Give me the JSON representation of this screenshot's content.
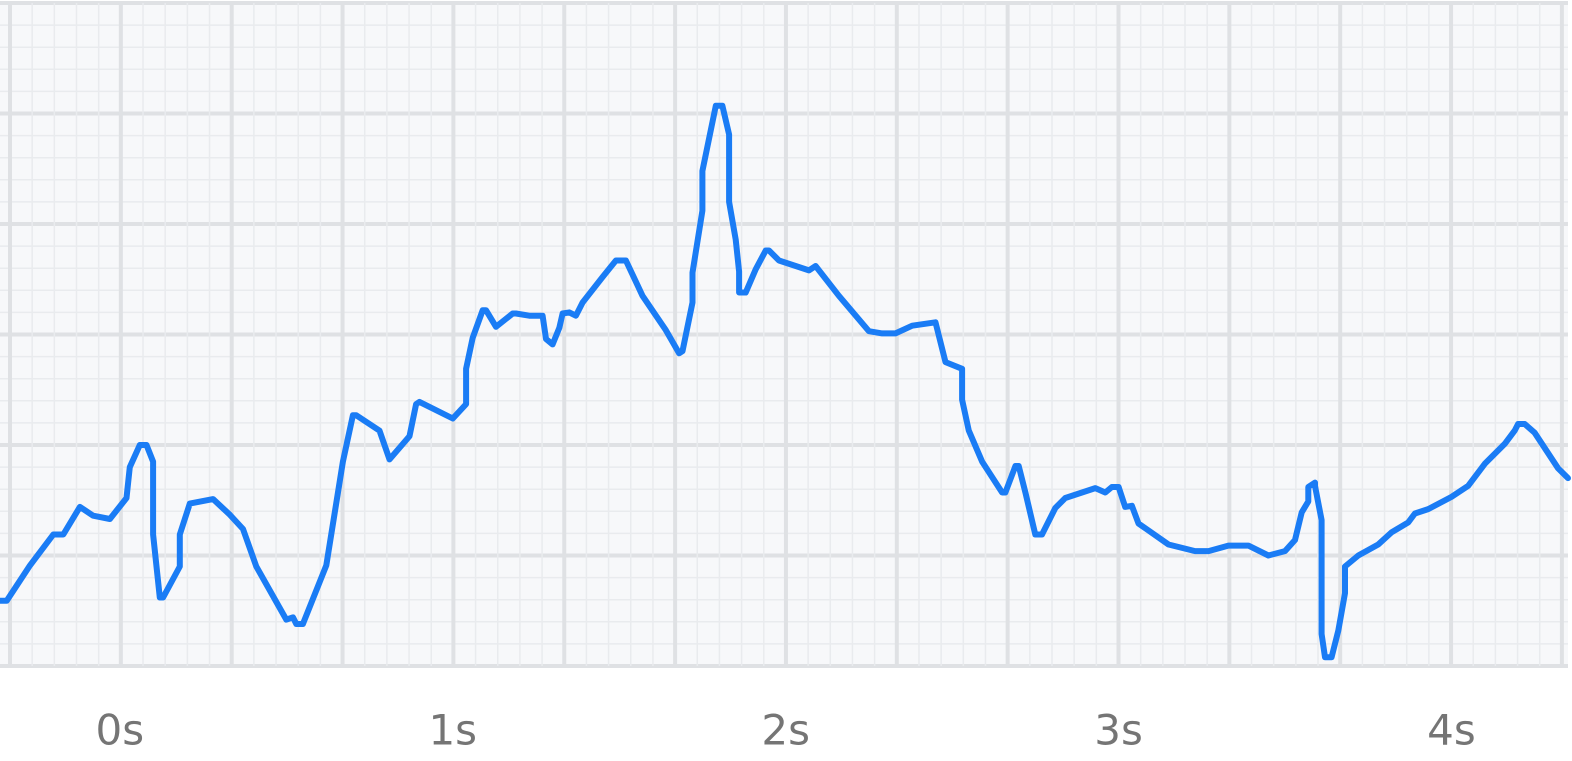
{
  "chart_data": {
    "type": "line",
    "x": [
      -0.36,
      -0.34,
      -0.27,
      -0.2,
      -0.17,
      -0.12,
      -0.08,
      -0.03,
      0.02,
      0.03,
      0.06,
      0.08,
      0.1,
      0.1,
      0.12,
      0.13,
      0.18,
      0.18,
      0.21,
      0.28,
      0.33,
      0.37,
      0.41,
      0.5,
      0.52,
      0.53,
      0.55,
      0.62,
      0.67,
      0.7,
      0.71,
      0.78,
      0.81,
      0.87,
      0.89,
      0.9,
      1.0,
      1.04,
      1.04,
      1.06,
      1.09,
      1.1,
      1.13,
      1.18,
      1.19,
      1.23,
      1.27,
      1.28,
      1.3,
      1.32,
      1.33,
      1.35,
      1.37,
      1.39,
      1.45,
      1.49,
      1.52,
      1.57,
      1.64,
      1.68,
      1.69,
      1.72,
      1.72,
      1.75,
      1.75,
      1.79,
      1.81,
      1.83,
      1.83,
      1.85,
      1.86,
      1.86,
      1.88,
      1.91,
      1.94,
      1.95,
      1.98,
      2.07,
      2.09,
      2.16,
      2.25,
      2.29,
      2.33,
      2.38,
      2.45,
      2.48,
      2.53,
      2.53,
      2.55,
      2.59,
      2.65,
      2.66,
      2.69,
      2.7,
      2.72,
      2.75,
      2.77,
      2.81,
      2.84,
      2.93,
      2.96,
      2.98,
      3.0,
      3.02,
      3.04,
      3.06,
      3.15,
      3.23,
      3.27,
      3.33,
      3.39,
      3.45,
      3.5,
      3.53,
      3.55,
      3.57,
      3.57,
      3.59,
      3.59,
      3.61,
      3.61,
      3.62,
      3.64,
      3.66,
      3.68,
      3.68,
      3.72,
      3.78,
      3.82,
      3.87,
      3.89,
      3.93,
      4.0,
      4.05,
      4.1,
      4.16,
      4.19,
      4.2,
      4.22,
      4.25,
      4.32,
      4.35
    ],
    "series": [
      {
        "color": "#1a7cf5",
        "values": [
          0.59,
          0.59,
          0.91,
          1.19,
          1.19,
          1.44,
          1.36,
          1.33,
          1.52,
          1.8,
          2.0,
          2.0,
          1.85,
          1.19,
          0.62,
          0.62,
          0.9,
          1.19,
          1.47,
          1.51,
          1.37,
          1.24,
          0.9,
          0.42,
          0.44,
          0.38,
          0.38,
          0.91,
          1.85,
          2.27,
          2.27,
          2.13,
          1.87,
          2.08,
          2.37,
          2.39,
          2.24,
          2.37,
          2.69,
          2.97,
          3.22,
          3.22,
          3.07,
          3.19,
          3.19,
          3.17,
          3.17,
          2.96,
          2.91,
          3.06,
          3.19,
          3.2,
          3.17,
          3.29,
          3.52,
          3.67,
          3.67,
          3.35,
          3.04,
          2.83,
          2.85,
          3.29,
          3.56,
          4.12,
          4.48,
          5.07,
          5.07,
          4.81,
          4.2,
          3.86,
          3.57,
          3.38,
          3.38,
          3.59,
          3.76,
          3.76,
          3.67,
          3.58,
          3.62,
          3.35,
          3.03,
          3.01,
          3.01,
          3.08,
          3.11,
          2.75,
          2.69,
          2.41,
          2.13,
          1.85,
          1.57,
          1.57,
          1.81,
          1.81,
          1.57,
          1.19,
          1.19,
          1.43,
          1.52,
          1.61,
          1.57,
          1.62,
          1.62,
          1.44,
          1.45,
          1.29,
          1.1,
          1.04,
          1.04,
          1.09,
          1.09,
          1.0,
          1.04,
          1.14,
          1.39,
          1.49,
          1.62,
          1.66,
          1.63,
          1.32,
          0.29,
          0.08,
          0.08,
          0.32,
          0.66,
          0.9,
          1.0,
          1.1,
          1.21,
          1.3,
          1.38,
          1.42,
          1.53,
          1.63,
          1.83,
          2.01,
          2.13,
          2.19,
          2.19,
          2.11,
          1.79,
          1.7
        ]
      }
    ],
    "xlim": [
      -0.36,
      4.35
    ],
    "ylim": [
      0,
      6
    ],
    "xticks": [
      {
        "value": 0,
        "label": "0s"
      },
      {
        "value": 1,
        "label": "1s"
      },
      {
        "value": 2,
        "label": "2s"
      },
      {
        "value": 3,
        "label": "3s"
      },
      {
        "value": 4,
        "label": "4s"
      }
    ]
  }
}
